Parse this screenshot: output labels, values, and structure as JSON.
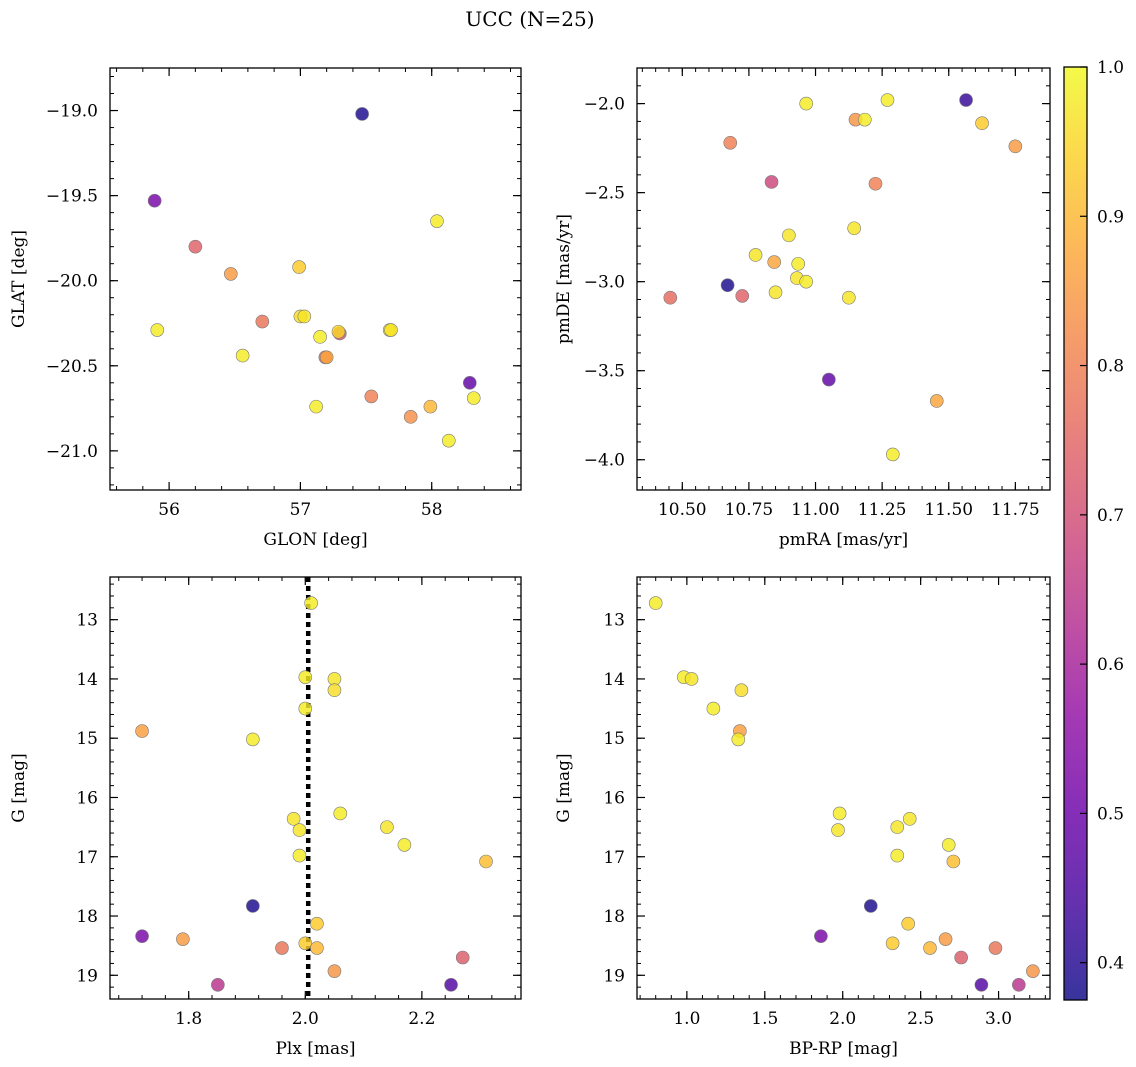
{
  "figure": {
    "title": "UCC (N=25)",
    "colorbar": {
      "ticks": [
        "0.4",
        "0.5",
        "0.6",
        "0.7",
        "0.8",
        "0.9",
        "1.0"
      ],
      "range": [
        0.375,
        1.0
      ],
      "colormap": "plasma"
    }
  },
  "chart_data": [
    {
      "type": "scatter",
      "xlabel": "GLON [deg]",
      "ylabel": "GLAT [deg]",
      "xlim": [
        55.55,
        58.68
      ],
      "ylim": [
        -21.23,
        -18.75
      ],
      "inverted_y": false,
      "x_ticks": [
        56,
        57,
        58
      ],
      "x_ticklabels": [
        "56",
        "57",
        "58"
      ],
      "x_minor": 0.2,
      "y_ticks": [
        -19.0,
        -19.5,
        -20.0,
        -20.5,
        -21.0
      ],
      "y_ticklabels": [
        "−19.0",
        "−19.5",
        "−20.0",
        "−20.5",
        "−21.0"
      ],
      "y_minor": 0.1,
      "points": [
        {
          "x": 57.47,
          "y": -19.02,
          "c": 0.39
        },
        {
          "x": 55.89,
          "y": -19.53,
          "c": 0.52
        },
        {
          "x": 56.2,
          "y": -19.8,
          "c": 0.74
        },
        {
          "x": 56.47,
          "y": -19.96,
          "c": 0.85
        },
        {
          "x": 56.99,
          "y": -19.92,
          "c": 0.93
        },
        {
          "x": 58.04,
          "y": -19.65,
          "c": 0.98
        },
        {
          "x": 56.71,
          "y": -20.24,
          "c": 0.78
        },
        {
          "x": 57.0,
          "y": -20.21,
          "c": 0.96
        },
        {
          "x": 57.03,
          "y": -20.21,
          "c": 0.97
        },
        {
          "x": 55.91,
          "y": -20.29,
          "c": 0.98
        },
        {
          "x": 57.15,
          "y": -20.33,
          "c": 0.98
        },
        {
          "x": 57.3,
          "y": -20.31,
          "c": 0.7
        },
        {
          "x": 57.29,
          "y": -20.3,
          "c": 0.95
        },
        {
          "x": 57.68,
          "y": -20.29,
          "c": 0.96
        },
        {
          "x": 57.69,
          "y": -20.29,
          "c": 0.97
        },
        {
          "x": 56.56,
          "y": -20.44,
          "c": 0.98
        },
        {
          "x": 57.19,
          "y": -20.45,
          "c": 0.76
        },
        {
          "x": 57.2,
          "y": -20.45,
          "c": 0.87
        },
        {
          "x": 58.29,
          "y": -20.6,
          "c": 0.48
        },
        {
          "x": 57.54,
          "y": -20.68,
          "c": 0.8
        },
        {
          "x": 57.12,
          "y": -20.74,
          "c": 0.98
        },
        {
          "x": 57.99,
          "y": -20.74,
          "c": 0.9
        },
        {
          "x": 57.84,
          "y": -20.8,
          "c": 0.83
        },
        {
          "x": 58.32,
          "y": -20.69,
          "c": 0.98
        },
        {
          "x": 58.13,
          "y": -20.94,
          "c": 0.98
        }
      ]
    },
    {
      "type": "scatter",
      "xlabel": "pmRA [mas/yr]",
      "ylabel": "pmDE [mas/yr]",
      "xlim": [
        10.33,
        11.88
      ],
      "ylim": [
        -4.17,
        -1.8
      ],
      "inverted_y": false,
      "x_ticks": [
        10.5,
        10.75,
        11.0,
        11.25,
        11.5,
        11.75
      ],
      "x_ticklabels": [
        "10.50",
        "10.75",
        "11.00",
        "11.25",
        "11.50",
        "11.75"
      ],
      "x_minor": 0.05,
      "y_ticks": [
        -2.0,
        -2.5,
        -3.0,
        -3.5,
        -4.0
      ],
      "y_ticklabels": [
        "−2.0",
        "−2.5",
        "−3.0",
        "−3.5",
        "−4.0"
      ],
      "y_minor": 0.1,
      "points": [
        {
          "x": 11.565,
          "y": -1.98,
          "c": 0.42
        },
        {
          "x": 11.27,
          "y": -1.98,
          "c": 0.98
        },
        {
          "x": 10.965,
          "y": -2.0,
          "c": 0.98
        },
        {
          "x": 11.15,
          "y": -2.09,
          "c": 0.84
        },
        {
          "x": 11.185,
          "y": -2.09,
          "c": 0.98
        },
        {
          "x": 11.625,
          "y": -2.11,
          "c": 0.93
        },
        {
          "x": 10.68,
          "y": -2.22,
          "c": 0.8
        },
        {
          "x": 11.75,
          "y": -2.24,
          "c": 0.85
        },
        {
          "x": 10.835,
          "y": -2.44,
          "c": 0.68
        },
        {
          "x": 11.225,
          "y": -2.45,
          "c": 0.8
        },
        {
          "x": 11.145,
          "y": -2.7,
          "c": 0.97
        },
        {
          "x": 10.9,
          "y": -2.74,
          "c": 0.97
        },
        {
          "x": 10.775,
          "y": -2.85,
          "c": 0.97
        },
        {
          "x": 10.845,
          "y": -2.89,
          "c": 0.87
        },
        {
          "x": 10.935,
          "y": -2.9,
          "c": 0.98
        },
        {
          "x": 10.93,
          "y": -2.98,
          "c": 0.97
        },
        {
          "x": 10.965,
          "y": -3.0,
          "c": 0.98
        },
        {
          "x": 10.67,
          "y": -3.02,
          "c": 0.39
        },
        {
          "x": 10.85,
          "y": -3.06,
          "c": 0.97
        },
        {
          "x": 10.455,
          "y": -3.09,
          "c": 0.76
        },
        {
          "x": 10.725,
          "y": -3.08,
          "c": 0.74
        },
        {
          "x": 11.125,
          "y": -3.09,
          "c": 0.97
        },
        {
          "x": 11.05,
          "y": -3.55,
          "c": 0.48
        },
        {
          "x": 11.455,
          "y": -3.67,
          "c": 0.87
        },
        {
          "x": 11.29,
          "y": -3.97,
          "c": 0.98
        }
      ]
    },
    {
      "type": "scatter",
      "xlabel": "Plx [mas]",
      "ylabel": "G [mag]",
      "xlim": [
        1.665,
        2.37
      ],
      "ylim": [
        19.4,
        12.28
      ],
      "inverted_y": true,
      "vline": {
        "x": 2.005,
        "style": "dotted"
      },
      "x_ticks": [
        1.8,
        2.0,
        2.2
      ],
      "x_ticklabels": [
        "1.8",
        "2.0",
        "2.2"
      ],
      "x_minor": 0.04,
      "y_ticks": [
        13,
        14,
        15,
        16,
        17,
        18,
        19
      ],
      "y_ticklabels": [
        "13",
        "14",
        "15",
        "16",
        "17",
        "18",
        "19"
      ],
      "y_minor": 0.2,
      "points": [
        {
          "x": 2.01,
          "y": 12.72,
          "c": 0.98
        },
        {
          "x": 2.0,
          "y": 13.97,
          "c": 0.98
        },
        {
          "x": 2.05,
          "y": 14.0,
          "c": 0.97
        },
        {
          "x": 2.05,
          "y": 14.19,
          "c": 0.96
        },
        {
          "x": 2.0,
          "y": 14.5,
          "c": 0.98
        },
        {
          "x": 1.72,
          "y": 14.88,
          "c": 0.86
        },
        {
          "x": 1.91,
          "y": 15.02,
          "c": 0.98
        },
        {
          "x": 2.06,
          "y": 16.27,
          "c": 0.98
        },
        {
          "x": 1.98,
          "y": 16.36,
          "c": 0.97
        },
        {
          "x": 2.14,
          "y": 16.5,
          "c": 0.97
        },
        {
          "x": 1.99,
          "y": 16.55,
          "c": 0.97
        },
        {
          "x": 2.17,
          "y": 16.8,
          "c": 0.98
        },
        {
          "x": 1.99,
          "y": 16.98,
          "c": 0.98
        },
        {
          "x": 2.31,
          "y": 17.08,
          "c": 0.91
        },
        {
          "x": 1.91,
          "y": 17.83,
          "c": 0.39
        },
        {
          "x": 2.02,
          "y": 18.13,
          "c": 0.93
        },
        {
          "x": 1.72,
          "y": 18.34,
          "c": 0.52
        },
        {
          "x": 1.79,
          "y": 18.39,
          "c": 0.85
        },
        {
          "x": 2.0,
          "y": 18.46,
          "c": 0.93
        },
        {
          "x": 1.96,
          "y": 18.54,
          "c": 0.78
        },
        {
          "x": 2.02,
          "y": 18.54,
          "c": 0.9
        },
        {
          "x": 2.27,
          "y": 18.7,
          "c": 0.73
        },
        {
          "x": 2.05,
          "y": 18.93,
          "c": 0.84
        },
        {
          "x": 1.85,
          "y": 19.16,
          "c": 0.64
        },
        {
          "x": 2.25,
          "y": 19.16,
          "c": 0.46
        }
      ]
    },
    {
      "type": "scatter",
      "xlabel": "BP-RP [mag]",
      "ylabel": "G [mag]",
      "xlim": [
        0.68,
        3.33
      ],
      "ylim": [
        19.4,
        12.28
      ],
      "inverted_y": true,
      "x_ticks": [
        1.0,
        1.5,
        2.0,
        2.5,
        3.0
      ],
      "x_ticklabels": [
        "1.0",
        "1.5",
        "2.0",
        "2.5",
        "3.0"
      ],
      "x_minor": 0.1,
      "y_ticks": [
        13,
        14,
        15,
        16,
        17,
        18,
        19
      ],
      "y_ticklabels": [
        "13",
        "14",
        "15",
        "16",
        "17",
        "18",
        "19"
      ],
      "y_minor": 0.2,
      "points": [
        {
          "x": 0.8,
          "y": 12.72,
          "c": 0.98
        },
        {
          "x": 0.98,
          "y": 13.97,
          "c": 0.98
        },
        {
          "x": 1.03,
          "y": 14.0,
          "c": 0.97
        },
        {
          "x": 1.35,
          "y": 14.19,
          "c": 0.96
        },
        {
          "x": 1.17,
          "y": 14.5,
          "c": 0.98
        },
        {
          "x": 1.34,
          "y": 14.88,
          "c": 0.86
        },
        {
          "x": 1.33,
          "y": 15.02,
          "c": 0.98
        },
        {
          "x": 1.98,
          "y": 16.27,
          "c": 0.98
        },
        {
          "x": 2.43,
          "y": 16.36,
          "c": 0.97
        },
        {
          "x": 2.35,
          "y": 16.5,
          "c": 0.97
        },
        {
          "x": 1.97,
          "y": 16.55,
          "c": 0.97
        },
        {
          "x": 2.68,
          "y": 16.8,
          "c": 0.98
        },
        {
          "x": 2.35,
          "y": 16.98,
          "c": 0.98
        },
        {
          "x": 2.71,
          "y": 17.08,
          "c": 0.91
        },
        {
          "x": 2.18,
          "y": 17.83,
          "c": 0.39
        },
        {
          "x": 2.42,
          "y": 18.13,
          "c": 0.93
        },
        {
          "x": 1.86,
          "y": 18.34,
          "c": 0.52
        },
        {
          "x": 2.66,
          "y": 18.39,
          "c": 0.85
        },
        {
          "x": 2.32,
          "y": 18.46,
          "c": 0.93
        },
        {
          "x": 2.98,
          "y": 18.54,
          "c": 0.78
        },
        {
          "x": 2.56,
          "y": 18.54,
          "c": 0.9
        },
        {
          "x": 2.76,
          "y": 18.7,
          "c": 0.73
        },
        {
          "x": 3.22,
          "y": 18.93,
          "c": 0.84
        },
        {
          "x": 3.13,
          "y": 19.16,
          "c": 0.64
        },
        {
          "x": 2.89,
          "y": 19.16,
          "c": 0.46
        }
      ]
    }
  ]
}
